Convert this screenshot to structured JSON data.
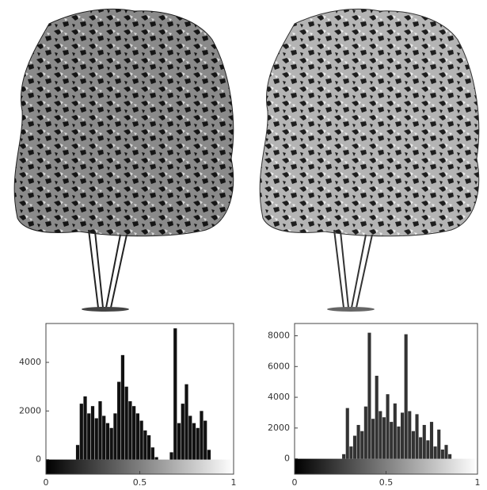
{
  "chart_data": [
    {
      "type": "histogram",
      "bins": [
        0,
        0.02,
        0.04,
        0.06,
        0.08,
        0.1,
        0.12,
        0.14,
        0.16,
        0.18,
        0.2,
        0.22,
        0.24,
        0.26,
        0.28,
        0.3,
        0.32,
        0.34,
        0.36,
        0.38,
        0.4,
        0.42,
        0.44,
        0.46,
        0.48,
        0.5,
        0.52,
        0.54,
        0.56,
        0.58,
        0.6,
        0.62,
        0.64,
        0.66,
        0.68,
        0.7,
        0.72,
        0.74,
        0.76,
        0.78,
        0.8,
        0.82,
        0.84,
        0.86,
        0.88,
        0.9,
        0.92,
        0.94,
        0.96,
        0.98,
        1
      ],
      "values": [
        0,
        0,
        0,
        0,
        0,
        0,
        0,
        0,
        600,
        2300,
        2600,
        1900,
        2200,
        1700,
        2400,
        1800,
        1500,
        1300,
        1900,
        3200,
        4300,
        3000,
        2400,
        2200,
        1900,
        1600,
        1200,
        1000,
        500,
        100,
        0,
        0,
        0,
        300,
        5400,
        1500,
        2300,
        3100,
        1800,
        1500,
        1300,
        2000,
        1600,
        400,
        0,
        0,
        0,
        0,
        0,
        0
      ],
      "color": "#111111",
      "xlim": [
        0,
        1
      ],
      "xticks": [
        0,
        0.5,
        1
      ],
      "ylim": [
        -600,
        5600
      ],
      "yticks": [
        0,
        2000,
        4000
      ]
    },
    {
      "type": "histogram",
      "bins": [
        0,
        0.02,
        0.04,
        0.06,
        0.08,
        0.1,
        0.12,
        0.14,
        0.16,
        0.18,
        0.2,
        0.22,
        0.24,
        0.26,
        0.28,
        0.3,
        0.32,
        0.34,
        0.36,
        0.38,
        0.4,
        0.42,
        0.44,
        0.46,
        0.48,
        0.5,
        0.52,
        0.54,
        0.56,
        0.58,
        0.6,
        0.62,
        0.64,
        0.66,
        0.68,
        0.7,
        0.72,
        0.74,
        0.76,
        0.78,
        0.8,
        0.82,
        0.84,
        0.86,
        0.88,
        0.9,
        0.92,
        0.94,
        0.96,
        0.98,
        1
      ],
      "values": [
        0,
        0,
        0,
        0,
        0,
        0,
        0,
        0,
        0,
        0,
        0,
        0,
        0,
        300,
        3300,
        800,
        1500,
        2200,
        1800,
        3400,
        8200,
        2600,
        5400,
        3100,
        2700,
        4200,
        2400,
        3600,
        2100,
        3000,
        8100,
        3100,
        1800,
        2900,
        1400,
        2200,
        1200,
        2400,
        800,
        1900,
        600,
        900,
        300,
        0,
        0,
        0,
        0,
        0,
        0,
        0
      ],
      "color": "#333333",
      "xlim": [
        0,
        1
      ],
      "xticks": [
        0,
        0.5,
        1
      ],
      "ylim": [
        -1000,
        8800
      ],
      "yticks": [
        0,
        2000,
        4000,
        6000,
        8000
      ]
    }
  ]
}
